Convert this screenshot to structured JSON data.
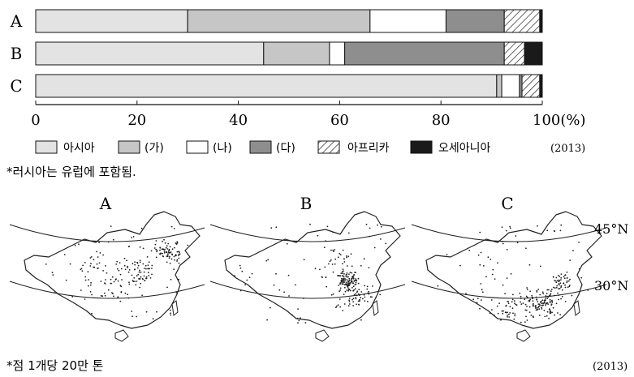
{
  "chart_data": [
    {
      "type": "bar",
      "orientation": "horizontal",
      "stacked": true,
      "categories": [
        "A",
        "B",
        "C"
      ],
      "series": [
        {
          "name": "아시아",
          "values": [
            30,
            45,
            91
          ],
          "color": "#e3e3e3",
          "pattern": "solid"
        },
        {
          "name": "(가)",
          "values": [
            36,
            13,
            1
          ],
          "color": "#c6c6c6",
          "pattern": "solid"
        },
        {
          "name": "(나)",
          "values": [
            15,
            3,
            3.5
          ],
          "color": "#ffffff",
          "pattern": "solid"
        },
        {
          "name": "(다)",
          "values": [
            11.5,
            31.5,
            0.5
          ],
          "color": "#8e8e8e",
          "pattern": "solid"
        },
        {
          "name": "아프리카",
          "values": [
            7,
            4,
            3.5
          ],
          "color": "#ffffff",
          "pattern": "hatch"
        },
        {
          "name": "오세아니아",
          "values": [
            0.5,
            3.5,
            0.5
          ],
          "color": "#1a1a1a",
          "pattern": "solid"
        }
      ],
      "x_ticks": [
        "0",
        "20",
        "40",
        "60",
        "80",
        "100(%)"
      ],
      "xlim": [
        0,
        100
      ],
      "legend_year": "(2013)",
      "footnote": "*러시아는 유럽에 포함됨."
    },
    {
      "type": "scatter",
      "panels": [
        {
          "label": "A",
          "concentration": "north-east"
        },
        {
          "label": "B",
          "concentration": "north-china-plain"
        },
        {
          "label": "C",
          "concentration": "south-east"
        }
      ],
      "latitude_labels": [
        "45°N",
        "30°N"
      ],
      "footnote": "*점 1개당 20만 톤",
      "year": "(2013)"
    }
  ]
}
